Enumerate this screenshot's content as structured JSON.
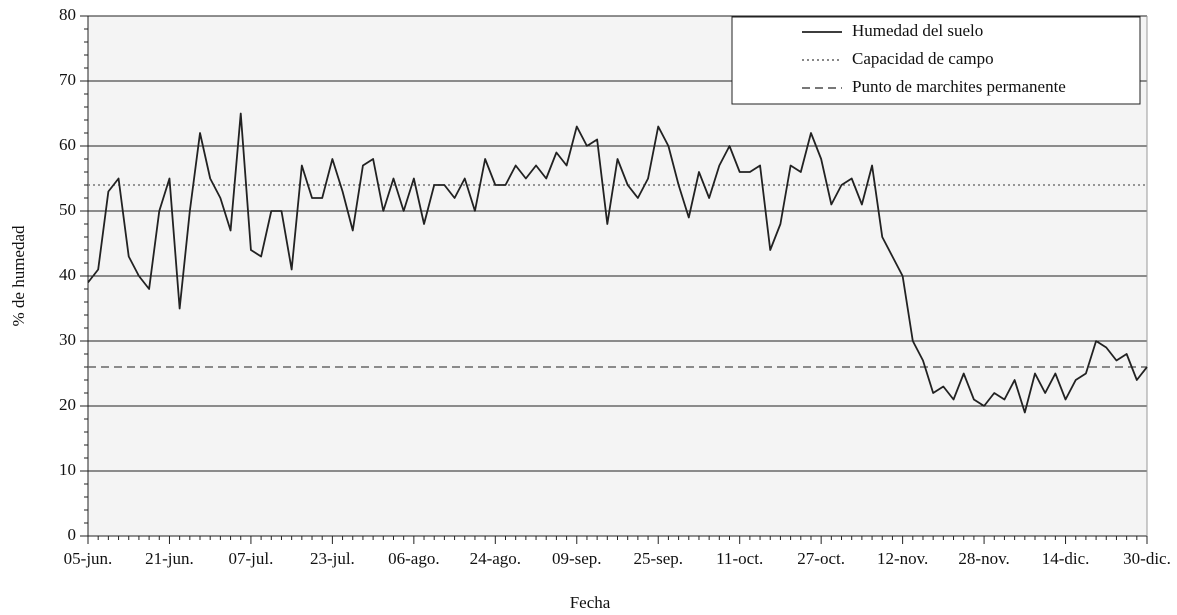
{
  "chart_data": {
    "type": "line",
    "x_label": "Fecha",
    "y_label": "% de humedad",
    "categories": [
      "05-jun.",
      null,
      null,
      null,
      null,
      null,
      null,
      null,
      "21-jun.",
      null,
      null,
      null,
      null,
      null,
      null,
      null,
      "07-jul.",
      null,
      null,
      null,
      null,
      null,
      null,
      null,
      "23-jul.",
      null,
      null,
      null,
      null,
      null,
      null,
      null,
      "06-ago.",
      null,
      null,
      null,
      null,
      null,
      null,
      null,
      "24-ago.",
      null,
      null,
      null,
      null,
      null,
      null,
      null,
      "09-sep.",
      null,
      null,
      null,
      null,
      null,
      null,
      null,
      "25-sep.",
      null,
      null,
      null,
      null,
      null,
      null,
      null,
      "11-oct.",
      null,
      null,
      null,
      null,
      null,
      null,
      null,
      "27-oct.",
      null,
      null,
      null,
      null,
      null,
      null,
      null,
      "12-nov.",
      null,
      null,
      null,
      null,
      null,
      null,
      null,
      "28-nov.",
      null,
      null,
      null,
      null,
      null,
      null,
      null,
      "14-dic.",
      null,
      null,
      null,
      null,
      null,
      null,
      null,
      "30-dic."
    ],
    "series": [
      {
        "name": "Humedad del suelo",
        "color": "#222222",
        "style": "solid",
        "values": [
          39,
          41,
          53,
          55,
          43,
          40,
          38,
          50,
          55,
          35,
          50,
          62,
          55,
          52,
          47,
          65,
          44,
          43,
          50,
          50,
          41,
          57,
          52,
          52,
          58,
          53,
          47,
          57,
          58,
          50,
          55,
          50,
          55,
          48,
          54,
          54,
          52,
          55,
          50,
          58,
          54,
          54,
          57,
          55,
          57,
          55,
          59,
          57,
          63,
          60,
          61,
          48,
          58,
          54,
          52,
          55,
          63,
          60,
          54,
          49,
          56,
          52,
          57,
          60,
          56,
          56,
          57,
          44,
          48,
          57,
          56,
          62,
          58,
          51,
          54,
          55,
          51,
          57,
          46,
          43,
          40,
          30,
          27,
          22,
          23,
          21,
          25,
          21,
          20,
          22,
          21,
          24,
          19,
          25,
          22,
          25,
          21,
          24,
          25,
          30,
          29,
          27,
          28,
          24,
          26
        ]
      }
    ],
    "hlines": [
      {
        "name": "Capacidad de campo",
        "value": 54,
        "color": "#777777",
        "style": "dotted"
      },
      {
        "name": "Punto de marchites permanente",
        "value": 26,
        "color": "#666666",
        "style": "dashed"
      }
    ],
    "ylim": [
      0,
      80
    ],
    "yticks": [
      0,
      10,
      20,
      30,
      40,
      50,
      60,
      70,
      80
    ],
    "grid": true,
    "legend": "top-right"
  }
}
